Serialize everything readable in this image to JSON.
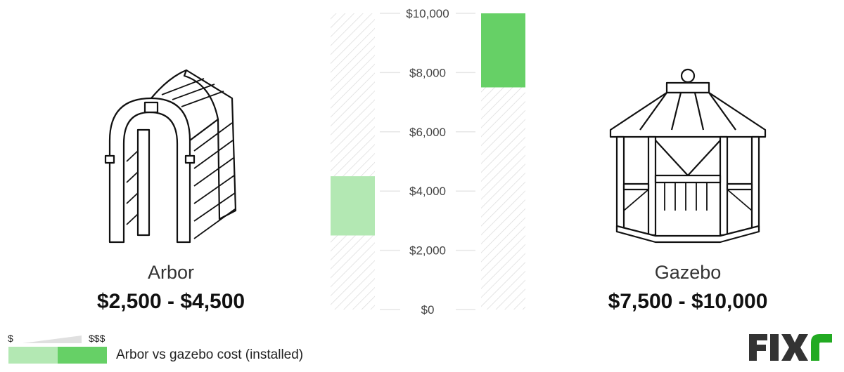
{
  "chart_data": {
    "type": "bar",
    "subtype": "floating-range",
    "categories": [
      "Arbor",
      "Gazebo"
    ],
    "series": [
      {
        "category": "Arbor",
        "low": 2500,
        "high": 4500,
        "color": "#b3e8b3"
      },
      {
        "category": "Gazebo",
        "low": 7500,
        "high": 10000,
        "color": "#66d066"
      }
    ],
    "ylim": [
      0,
      10000
    ],
    "yticks": [
      0,
      2000,
      4000,
      6000,
      8000,
      10000
    ],
    "ytick_labels": [
      "$0",
      "$2,000",
      "$4,000",
      "$6,000",
      "$8,000",
      "$10,000"
    ],
    "background_pattern": "diagonal-hatch",
    "grid": true
  },
  "items": [
    {
      "name": "Arbor",
      "price": "$2,500 - $4,500",
      "icon": "arbor-illustration"
    },
    {
      "name": "Gazebo",
      "price": "$7,500 - $10,000",
      "icon": "gazebo-illustration"
    }
  ],
  "legend": {
    "low_label": "$",
    "high_label": "$$$",
    "text": "Arbor vs gazebo cost (installed)",
    "colors": [
      "#b3e8b3",
      "#66d066"
    ]
  },
  "logo": {
    "text": "FIXR",
    "colors": {
      "main": "#333333",
      "accent": "#22aa22"
    }
  }
}
